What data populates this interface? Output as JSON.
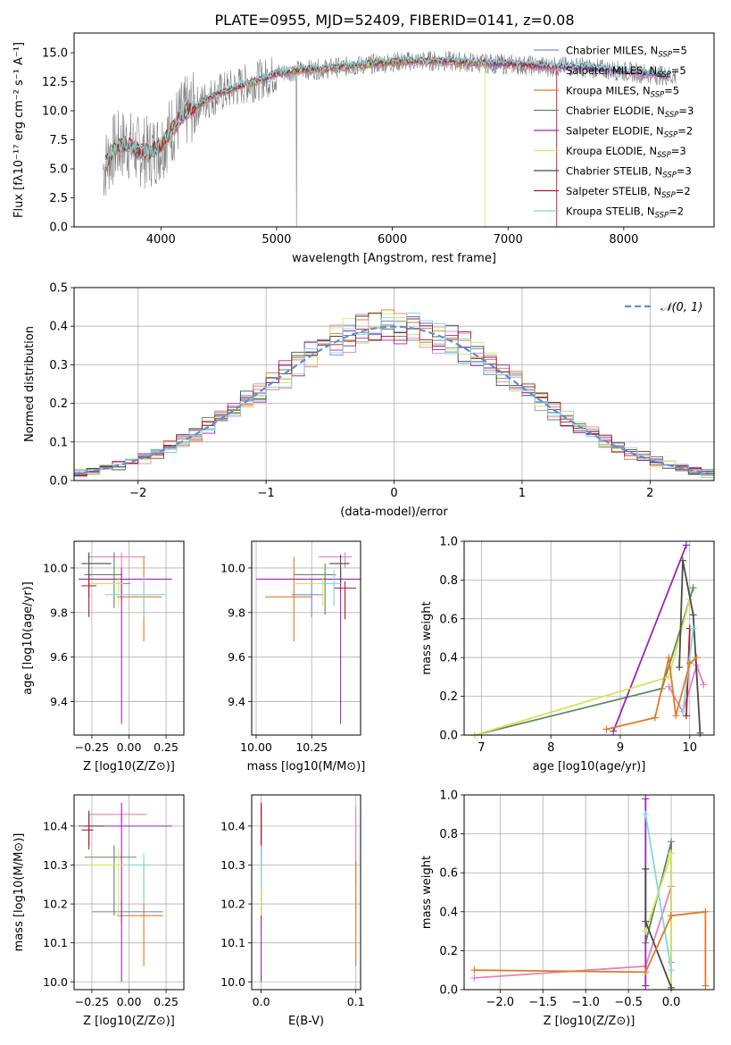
{
  "figure": {
    "title": "PLATE=0955, MJD=52409, FIBERID=0141, z=0.08"
  },
  "chart_data": [
    {
      "id": "spectrum",
      "type": "line",
      "xlabel": "wavelength [Angstrom, rest frame]",
      "ylabel": "Flux [fλ10⁻¹⁷ erg cm⁻² s⁻¹ A⁻¹]",
      "xlim": [
        3250,
        8780
      ],
      "ylim": [
        0,
        16.7
      ],
      "xticks": [
        4000,
        5000,
        6000,
        7000,
        8000
      ],
      "yticks": [
        0.0,
        2.5,
        5.0,
        7.5,
        10.0,
        12.5,
        15.0
      ],
      "grid": false,
      "legend_position": "top-right",
      "data_color": "#808080",
      "series": [
        {
          "name": "Chabrier MILES, N_SSP=5",
          "color": "#7b8fc8"
        },
        {
          "name": "Salpeter MILES, N_SSP=5",
          "color": "#e77fbf"
        },
        {
          "name": "Kroupa MILES, N_SSP=5",
          "color": "#e07b26"
        },
        {
          "name": "Chabrier ELODIE, N_SSP=3",
          "color": "#5b8a5b"
        },
        {
          "name": "Salpeter ELODIE, N_SSP=2",
          "color": "#9c27b0"
        },
        {
          "name": "Kroupa ELODIE, N_SSP=3",
          "color": "#d4e65a"
        },
        {
          "name": "Chabrier STELIB, N_SSP=3",
          "color": "#4a4a4a"
        },
        {
          "name": "Salpeter STELIB, N_SSP=2",
          "color": "#b2182b"
        },
        {
          "name": "Kroupa STELIB, N_SSP=2",
          "color": "#7fd8df"
        }
      ],
      "continuum": {
        "x": [
          3500,
          3600,
          3700,
          3800,
          3900,
          4000,
          4100,
          4200,
          4300,
          4400,
          4500,
          4600,
          4700,
          4800,
          4900,
          5000,
          5200,
          5400,
          5600,
          5800,
          6000,
          6200,
          6400,
          6600,
          6800,
          7000,
          7200,
          7400,
          7600,
          7800,
          8000,
          8200,
          8400
        ],
        "y": [
          5.0,
          6.8,
          7.2,
          6.5,
          6.4,
          7.0,
          8.5,
          9.8,
          10.3,
          11.0,
          11.5,
          11.8,
          12.2,
          12.5,
          12.8,
          13.2,
          13.5,
          13.6,
          13.8,
          14.0,
          14.2,
          14.3,
          14.3,
          14.2,
          14.1,
          14.0,
          13.9,
          13.8,
          13.8,
          13.6,
          13.4,
          13.2,
          13.0
        ]
      }
    },
    {
      "id": "residuals",
      "type": "histogram",
      "xlabel": "(data-model)/error",
      "ylabel": "Normed distribution",
      "xlim": [
        -2.5,
        2.5
      ],
      "ylim": [
        0,
        0.5
      ],
      "xticks": [
        -2,
        -1,
        0,
        1,
        2
      ],
      "yticks": [
        0.0,
        0.1,
        0.2,
        0.3,
        0.4,
        0.5
      ],
      "grid": true,
      "legend_position": "top-right",
      "reference_curve": {
        "name": "𝒩(0, 1)",
        "color": "#5b8fd6",
        "mean": 0,
        "sigma": 1
      },
      "bin_width": 0.1
    },
    {
      "id": "age-vs-Z",
      "type": "scatter",
      "xlabel": "Z [log10(Z/Z⊙)]",
      "ylabel": "age [log10(age/yr)]",
      "xlim": [
        -0.37,
        0.37
      ],
      "ylim": [
        9.25,
        10.12
      ],
      "xticks": [
        -0.25,
        0.0,
        0.25
      ],
      "xticklabels": [
        "−0.25",
        "0.00",
        "0.25"
      ],
      "yticks": [
        9.4,
        9.6,
        9.8,
        10.0
      ],
      "grid": true,
      "points": [
        {
          "series": 0,
          "x": -0.05,
          "y": 9.93,
          "xerr": [
            0.2,
            0.06
          ],
          "yerr": [
            0.08,
            0.05
          ]
        },
        {
          "series": 1,
          "x": -0.05,
          "y": 10.05,
          "xerr": [
            0.23,
            0.16
          ],
          "yerr": [
            0.05,
            0.02
          ]
        },
        {
          "series": 2,
          "x": 0.1,
          "y": 9.87,
          "xerr": [
            0.18,
            0.12
          ],
          "yerr": [
            0.2,
            0.18
          ]
        },
        {
          "series": 3,
          "x": -0.1,
          "y": 9.97,
          "xerr": [
            0.2,
            0.05
          ],
          "yerr": [
            0.15,
            0.1
          ]
        },
        {
          "series": 4,
          "x": -0.05,
          "y": 9.95,
          "xerr": [
            0.29,
            0.34
          ],
          "yerr": [
            0.65,
            0.05
          ]
        },
        {
          "series": 5,
          "x": -0.07,
          "y": 9.93,
          "xerr": [
            0.2,
            0.03
          ],
          "yerr": [
            0.1,
            0.03
          ]
        },
        {
          "series": 6,
          "x": -0.27,
          "y": 10.02,
          "xerr": [
            0.05,
            0.15
          ],
          "yerr": [
            0.15,
            0.05
          ]
        },
        {
          "series": 7,
          "x": -0.27,
          "y": 9.92,
          "xerr": [
            0.05,
            0.05
          ],
          "yerr": [
            0.14,
            0.05
          ]
        },
        {
          "series": 8,
          "x": 0.1,
          "y": 9.88,
          "xerr": [
            0.26,
            0.15
          ],
          "yerr": [
            0.1,
            0.08
          ]
        }
      ]
    },
    {
      "id": "age-vs-mass",
      "type": "scatter",
      "xlabel": "mass [log10(M/M⊙)]",
      "ylabel": "",
      "xlim": [
        9.98,
        10.47
      ],
      "ylim": [
        9.25,
        10.12
      ],
      "xticks": [
        10.0,
        10.25
      ],
      "xticklabels": [
        "10.00",
        "10.25"
      ],
      "yticks": [
        9.4,
        9.6,
        9.8,
        10.0
      ],
      "grid": true,
      "points": [
        {
          "series": 0,
          "x": 10.25,
          "y": 9.88,
          "xerr": [
            0.09,
            0.05
          ],
          "yerr": [
            0.1,
            0.07
          ]
        },
        {
          "series": 1,
          "x": 10.4,
          "y": 10.05,
          "xerr": [
            0.12,
            0.03
          ],
          "yerr": [
            0.05,
            0.02
          ]
        },
        {
          "series": 2,
          "x": 10.17,
          "y": 9.87,
          "xerr": [
            0.13,
            0.08
          ],
          "yerr": [
            0.2,
            0.18
          ]
        },
        {
          "series": 3,
          "x": 10.31,
          "y": 9.97,
          "xerr": [
            0.14,
            0.05
          ],
          "yerr": [
            0.18,
            0.05
          ]
        },
        {
          "series": 4,
          "x": 10.38,
          "y": 9.95,
          "xerr": [
            0.38,
            0.09
          ],
          "yerr": [
            0.65,
            0.05
          ]
        },
        {
          "series": 5,
          "x": 10.3,
          "y": 9.93,
          "xerr": [
            0.13,
            0.02
          ],
          "yerr": [
            0.1,
            0.03
          ]
        },
        {
          "series": 6,
          "x": 10.38,
          "y": 10.02,
          "xerr": [
            0.05,
            0.04
          ],
          "yerr": [
            0.1,
            0.04
          ]
        },
        {
          "series": 7,
          "x": 10.4,
          "y": 9.91,
          "xerr": [
            0.05,
            0.05
          ],
          "yerr": [
            0.14,
            0.03
          ]
        },
        {
          "series": 8,
          "x": 10.35,
          "y": 9.93,
          "xerr": [
            0.05,
            0.03
          ],
          "yerr": [
            0.1,
            0.06
          ]
        }
      ]
    },
    {
      "id": "weight-vs-age",
      "type": "line",
      "xlabel": "age [log10(age/yr)]",
      "ylabel": "mass weight",
      "xlim": [
        6.75,
        10.35
      ],
      "ylim": [
        0,
        1.0
      ],
      "xticks": [
        7,
        8,
        9,
        10
      ],
      "yticks": [
        0.0,
        0.2,
        0.4,
        0.6,
        0.8,
        1.0
      ],
      "grid": true,
      "series": [
        {
          "series": 1,
          "x": [
            9.7,
            9.9,
            10.1,
            10.2
          ],
          "y": [
            0.25,
            0.12,
            0.36,
            0.26
          ]
        },
        {
          "series": 3,
          "x": [
            6.9,
            9.6,
            10.05
          ],
          "y": [
            0.0,
            0.24,
            0.76
          ]
        },
        {
          "series": 4,
          "x": [
            8.9,
            9.95
          ],
          "y": [
            0.02,
            0.98
          ]
        },
        {
          "series": 5,
          "x": [
            6.9,
            9.7,
            10.0
          ],
          "y": [
            0.0,
            0.3,
            0.7
          ]
        },
        {
          "series": 6,
          "x": [
            9.85,
            9.9,
            10.05,
            10.15
          ],
          "y": [
            0.35,
            0.9,
            0.62,
            0.01
          ]
        },
        {
          "series": 7,
          "x": [
            9.95,
            10.0
          ],
          "y": [
            0.1,
            0.55
          ]
        },
        {
          "series": 8,
          "x": [
            9.9,
            10.05
          ],
          "y": [
            0.12,
            0.55
          ]
        },
        {
          "series": 2,
          "x": [
            8.8,
            9.5,
            9.7,
            9.8,
            10.0,
            10.1
          ],
          "y": [
            0.03,
            0.09,
            0.4,
            0.1,
            0.37,
            0.4
          ]
        }
      ]
    },
    {
      "id": "mass-vs-Z",
      "type": "scatter",
      "xlabel": "Z [log10(Z/Z⊙)]",
      "ylabel": "mass [log10(M/M⊙)]",
      "xlim": [
        -0.37,
        0.37
      ],
      "ylim": [
        9.98,
        10.48
      ],
      "xticks": [
        -0.25,
        0.0,
        0.25
      ],
      "xticklabels": [
        "−0.25",
        "0.00",
        "0.25"
      ],
      "yticks": [
        10.0,
        10.1,
        10.2,
        10.3,
        10.4
      ],
      "grid": true,
      "points": [
        {
          "series": 0,
          "x": -0.05,
          "y": 10.18,
          "xerr": [
            0.2,
            0.28
          ],
          "yerr": [
            0.03,
            0.03
          ]
        },
        {
          "series": 1,
          "x": -0.05,
          "y": 10.43,
          "xerr": [
            0.22,
            0.17
          ],
          "yerr": [
            0.02,
            0.01
          ]
        },
        {
          "series": 2,
          "x": 0.1,
          "y": 10.17,
          "xerr": [
            0.18,
            0.13
          ],
          "yerr": [
            0.13,
            0.14
          ]
        },
        {
          "series": 3,
          "x": -0.1,
          "y": 10.32,
          "xerr": [
            0.2,
            0.15
          ],
          "yerr": [
            0.15,
            0.03
          ]
        },
        {
          "series": 4,
          "x": -0.05,
          "y": 10.4,
          "xerr": [
            0.29,
            0.34
          ],
          "yerr": [
            0.4,
            0.06
          ]
        },
        {
          "series": 5,
          "x": -0.07,
          "y": 10.3,
          "xerr": [
            0.21,
            0.03
          ],
          "yerr": [
            0.13,
            0.04
          ]
        },
        {
          "series": 6,
          "x": -0.27,
          "y": 10.4,
          "xerr": [
            0.03,
            0.1
          ],
          "yerr": [
            0.05,
            0.04
          ]
        },
        {
          "series": 7,
          "x": -0.27,
          "y": 10.39,
          "xerr": [
            0.05,
            0.03
          ],
          "yerr": [
            0.05,
            0.04
          ]
        },
        {
          "series": 8,
          "x": 0.1,
          "y": 10.3,
          "xerr": [
            0.1,
            0.05
          ],
          "yerr": [
            0.1,
            0.03
          ]
        }
      ]
    },
    {
      "id": "mass-vs-ebv",
      "type": "scatter",
      "xlabel": "E(B-V)",
      "ylabel": "",
      "xlim": [
        -0.01,
        0.105
      ],
      "ylim": [
        9.98,
        10.48
      ],
      "xticks": [
        0.0,
        0.1
      ],
      "xticklabels": [
        "0.0",
        "0.1"
      ],
      "yticks": [
        10.0,
        10.1,
        10.2,
        10.3,
        10.4
      ],
      "grid": true,
      "points": [
        {
          "series": 0,
          "x": 0.0,
          "y": 10.2,
          "xerr": [
            0.0,
            0.0
          ],
          "yerr": [
            0.04,
            0.04
          ]
        },
        {
          "series": 1,
          "x": 0.1,
          "y": 10.35,
          "xerr": [
            0.0,
            0.0
          ],
          "yerr": [
            0.1,
            0.1
          ]
        },
        {
          "series": 2,
          "x": 0.1,
          "y": 10.17,
          "xerr": [
            0.0,
            0.0
          ],
          "yerr": [
            0.13,
            0.14
          ]
        },
        {
          "series": 3,
          "x": 0.0,
          "y": 10.3,
          "xerr": [
            0.0,
            0.0
          ],
          "yerr": [
            0.05,
            0.05
          ]
        },
        {
          "series": 4,
          "x": 0.0,
          "y": 10.3,
          "xerr": [
            0.0,
            0.0
          ],
          "yerr": [
            0.3,
            0.16
          ]
        },
        {
          "series": 5,
          "x": 0.0,
          "y": 10.25,
          "xerr": [
            0.0,
            0.0
          ],
          "yerr": [
            0.08,
            0.05
          ]
        },
        {
          "series": 6,
          "x": 0.0,
          "y": 10.4,
          "xerr": [
            0.0,
            0.0
          ],
          "yerr": [
            0.05,
            0.05
          ]
        },
        {
          "series": 7,
          "x": 0.0,
          "y": 10.4,
          "xerr": [
            0.0,
            0.0
          ],
          "yerr": [
            0.06,
            0.06
          ]
        },
        {
          "series": 8,
          "x": 0.0,
          "y": 10.3,
          "xerr": [
            0.0,
            0.0
          ],
          "yerr": [
            0.06,
            0.05
          ]
        }
      ]
    },
    {
      "id": "weight-vs-Z",
      "type": "line",
      "xlabel": "Z [log10(Z/Z⊙)]",
      "ylabel": "mass weight",
      "xlim": [
        -2.42,
        0.5
      ],
      "ylim": [
        0,
        1.0
      ],
      "xticks": [
        -2.0,
        -1.5,
        -1.0,
        -0.5,
        0.0
      ],
      "xticklabels": [
        "−2.0",
        "−1.5",
        "−1.0",
        "−0.5",
        "0.0"
      ],
      "yticks": [
        0.0,
        0.2,
        0.4,
        0.6,
        0.8,
        1.0
      ],
      "grid": true,
      "series": [
        {
          "series": 1,
          "x": [
            -2.3,
            -0.3,
            0.0,
            0.0
          ],
          "y": [
            0.06,
            0.12,
            0.53,
            0.14
          ]
        },
        {
          "series": 3,
          "x": [
            -0.3,
            0.0,
            0.0
          ],
          "y": [
            0.24,
            0.76,
            0.0
          ]
        },
        {
          "series": 4,
          "x": [
            -0.3,
            -0.3
          ],
          "y": [
            0.02,
            0.98
          ]
        },
        {
          "series": 5,
          "x": [
            -0.3,
            0.0,
            0.0
          ],
          "y": [
            0.3,
            0.7,
            0.0
          ]
        },
        {
          "series": 6,
          "x": [
            -0.3,
            -0.3,
            0.0
          ],
          "y": [
            0.62,
            0.35,
            0.01
          ]
        },
        {
          "series": 8,
          "x": [
            -0.3,
            0.0
          ],
          "y": [
            0.9,
            0.1
          ]
        },
        {
          "series": 2,
          "x": [
            -2.3,
            -0.3,
            0.0,
            0.4,
            0.4
          ],
          "y": [
            0.1,
            0.09,
            0.38,
            0.4,
            0.02
          ]
        }
      ]
    }
  ]
}
